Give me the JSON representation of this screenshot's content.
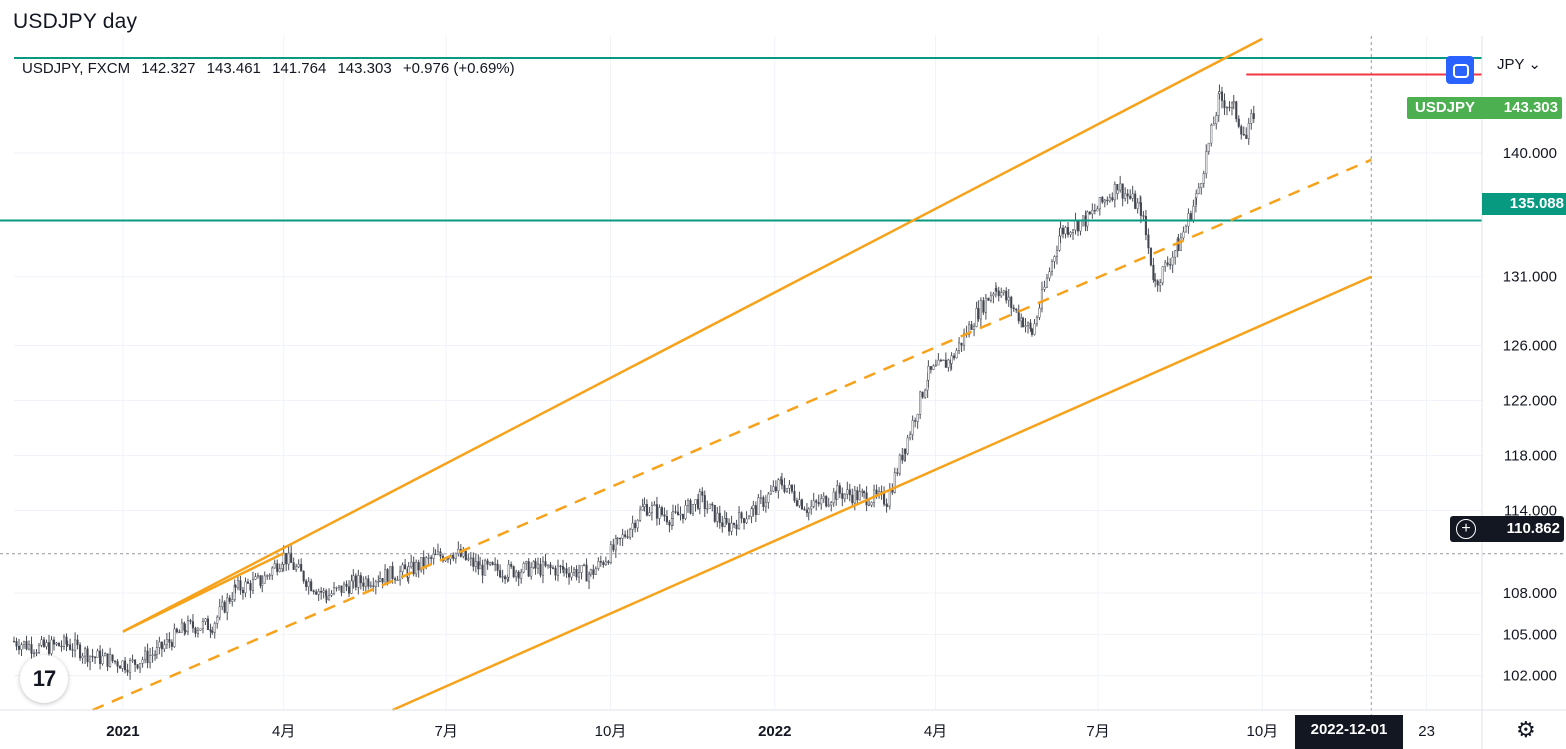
{
  "header": {
    "title": "USDJPY day"
  },
  "legend": {
    "symbol": "USDJPY, FXCM",
    "open": "142.327",
    "high": "143.461",
    "low": "141.764",
    "close": "143.303",
    "change": "+0.976 (+0.69%)"
  },
  "toolbar": {
    "currency": "JPY",
    "currency_chevron": "⌄",
    "sync_icon": "sync-icon",
    "settings_icon": "gear-icon",
    "settings_glyph": "⚙"
  },
  "badges": {
    "price_symbol": "USDJPY",
    "price_value": "143.303",
    "level_value": "135.088",
    "crosshair_value": "110.862",
    "crosshair_plus": "+",
    "date_value": "2022-12-01"
  },
  "logo": {
    "text": "17"
  },
  "colors": {
    "channel": "#f7a21b",
    "level": "#089981",
    "red_line": "#f23645",
    "candle_up": "#b2b5be",
    "candle_down": "#555a66",
    "price_badge": "#4caf50",
    "sync_button": "#2962ff"
  },
  "chart_data": {
    "type": "line",
    "title": "USDJPY day",
    "x_ticks": [
      "2021",
      "4月",
      "7月",
      "10月",
      "2022",
      "4月",
      "7月",
      "10月",
      "23"
    ],
    "x_tick_dates": [
      "2021-01-01",
      "2021-04-01",
      "2021-07-01",
      "2021-10-01",
      "2022-01-01",
      "2022-04-01",
      "2022-07-01",
      "2022-10-01",
      "2023-01-01"
    ],
    "y_ticks": [
      "102.000",
      "105.000",
      "108.000",
      "114.000",
      "118.000",
      "122.000",
      "126.000",
      "131.000",
      "140.000"
    ],
    "y_tick_values": [
      102,
      105,
      108,
      114,
      118,
      122,
      126,
      131,
      140
    ],
    "x_range": [
      "2020-11-01",
      "2023-02-01"
    ],
    "y_range": [
      99.5,
      148.5
    ],
    "grid": true,
    "series": [
      {
        "name": "USDJPY",
        "values": [
          [
            "2020-11-01",
            104.5
          ],
          [
            "2020-11-15",
            104.0
          ],
          [
            "2020-12-01",
            104.3
          ],
          [
            "2020-12-15",
            103.4
          ],
          [
            "2021-01-05",
            102.8
          ],
          [
            "2021-01-20",
            103.7
          ],
          [
            "2021-02-05",
            105.5
          ],
          [
            "2021-02-20",
            105.7
          ],
          [
            "2021-03-05",
            108.3
          ],
          [
            "2021-03-20",
            108.9
          ],
          [
            "2021-04-01",
            110.7
          ],
          [
            "2021-04-15",
            108.8
          ],
          [
            "2021-04-25",
            107.8
          ],
          [
            "2021-05-10",
            108.7
          ],
          [
            "2021-05-25",
            109.2
          ],
          [
            "2021-06-10",
            109.6
          ],
          [
            "2021-06-25",
            110.6
          ],
          [
            "2021-07-05",
            111.0
          ],
          [
            "2021-07-20",
            109.8
          ],
          [
            "2021-08-05",
            109.6
          ],
          [
            "2021-08-20",
            109.8
          ],
          [
            "2021-09-05",
            109.7
          ],
          [
            "2021-09-20",
            109.4
          ],
          [
            "2021-10-05",
            111.5
          ],
          [
            "2021-10-20",
            114.3
          ],
          [
            "2021-11-05",
            113.4
          ],
          [
            "2021-11-20",
            114.8
          ],
          [
            "2021-12-05",
            112.8
          ],
          [
            "2021-12-20",
            114.0
          ],
          [
            "2022-01-05",
            116.0
          ],
          [
            "2022-01-20",
            114.1
          ],
          [
            "2022-02-05",
            115.3
          ],
          [
            "2022-02-20",
            115.0
          ],
          [
            "2022-03-05",
            114.8
          ],
          [
            "2022-03-15",
            118.7
          ],
          [
            "2022-03-28",
            123.9
          ],
          [
            "2022-04-10",
            125.0
          ],
          [
            "2022-04-25",
            128.5
          ],
          [
            "2022-05-05",
            130.3
          ],
          [
            "2022-05-20",
            127.8
          ],
          [
            "2022-05-25",
            126.9
          ],
          [
            "2022-06-10",
            134.3
          ],
          [
            "2022-06-25",
            135.2
          ],
          [
            "2022-07-12",
            137.6
          ],
          [
            "2022-07-25",
            135.9
          ],
          [
            "2022-08-02",
            130.5
          ],
          [
            "2022-08-15",
            133.3
          ],
          [
            "2022-08-25",
            136.7
          ],
          [
            "2022-09-07",
            144.0
          ],
          [
            "2022-09-15",
            143.2
          ],
          [
            "2022-09-22",
            141.0
          ],
          [
            "2022-09-27",
            143.303
          ]
        ]
      }
    ],
    "horizontal_levels": [
      135.088,
      110.862
    ],
    "red_segment": {
      "value": 145.7,
      "x_start": "2022-09-22",
      "x_end": "2023-02-01"
    },
    "channel": {
      "upper": [
        [
          "2021-01-01",
          105.2
        ],
        [
          "2022-10-01",
          148.3
        ]
      ],
      "middle": [
        [
          "2020-12-15",
          99.5
        ],
        [
          "2022-12-01",
          139.5
        ]
      ],
      "lower": [
        [
          "2021-06-01",
          99.5
        ],
        [
          "2022-12-01",
          131.0
        ]
      ],
      "upper_anchor": [
        "2021-04-01",
        110.9
      ]
    },
    "crosshair": {
      "x": "2022-12-01",
      "y": 110.862
    },
    "last_price": 143.303
  }
}
